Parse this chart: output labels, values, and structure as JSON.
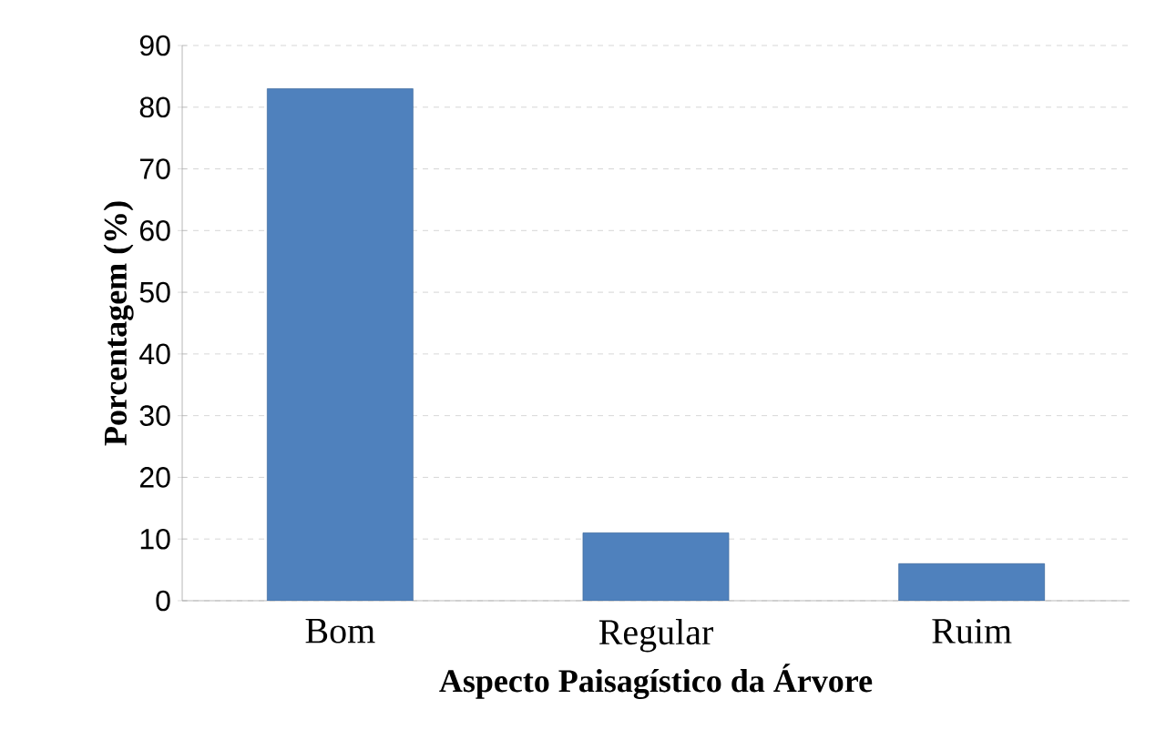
{
  "chart_data": {
    "type": "bar",
    "xlabel": "Aspecto Paisagístico da Árvore",
    "ylabel": "Porcentagem (%)",
    "categories": [
      "Bom",
      "Regular",
      "Ruim"
    ],
    "values": [
      83,
      11,
      6
    ],
    "color": "#4f81bd",
    "ylim": [
      0,
      90
    ],
    "yticks": [
      0,
      10,
      20,
      30,
      40,
      50,
      60,
      70,
      80,
      90
    ],
    "grid": "y"
  }
}
